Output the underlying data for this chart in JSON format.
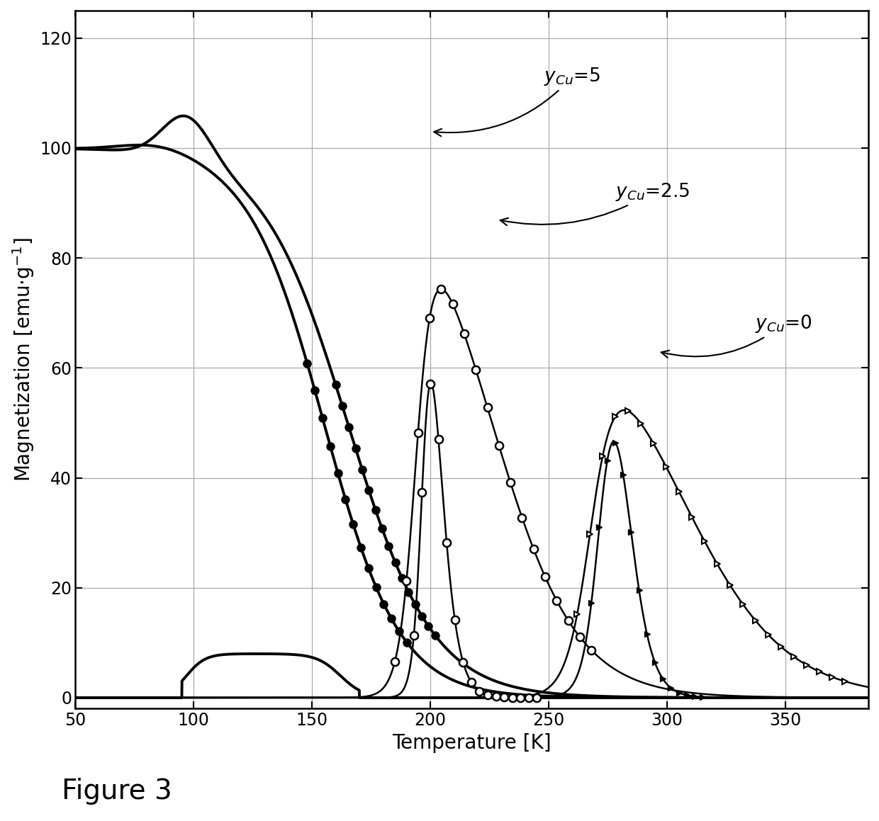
{
  "title": "",
  "xlabel": "Temperature [K]",
  "ylabel": "Magnetization [emu·g$^{-1}$]",
  "xlim": [
    50,
    385
  ],
  "ylim": [
    -2,
    125
  ],
  "xticks": [
    50,
    100,
    150,
    200,
    250,
    300,
    350
  ],
  "yticks": [
    0,
    20,
    40,
    60,
    80,
    100,
    120
  ],
  "figure_caption": "Figure 3",
  "background_color": "#ffffff",
  "grid_color": "#aaaaaa"
}
